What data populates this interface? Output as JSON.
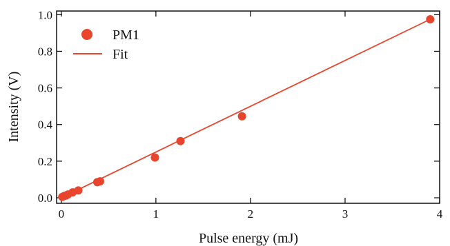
{
  "chart_data": {
    "type": "scatter",
    "title": "",
    "xlabel": "Pulse energy (mJ)",
    "ylabel": "Intensity (V)",
    "xlim": [
      -0.05,
      4.0
    ],
    "ylim": [
      -0.03,
      1.02
    ],
    "xticks": [
      0,
      1,
      2,
      3,
      4
    ],
    "xtick_labels": [
      "0",
      "1",
      "2",
      "3",
      "4"
    ],
    "yticks": [
      0.0,
      0.2,
      0.4,
      0.6,
      0.8,
      1.0
    ],
    "ytick_labels": [
      "0.0",
      "0.2",
      "0.4",
      "0.6",
      "0.8",
      "1.0"
    ],
    "series": [
      {
        "name": "PM1",
        "kind": "scatter",
        "color": "#e8452c",
        "x": [
          0.01,
          0.03,
          0.05,
          0.07,
          0.12,
          0.18,
          0.38,
          0.41,
          0.99,
          1.26,
          1.91,
          3.9
        ],
        "y": [
          0.005,
          0.01,
          0.012,
          0.018,
          0.03,
          0.04,
          0.085,
          0.09,
          0.22,
          0.31,
          0.445,
          0.975
        ]
      },
      {
        "name": "Fit",
        "kind": "line",
        "color": "#e8452c",
        "x": [
          0.0,
          3.9
        ],
        "y": [
          0.0,
          0.975
        ]
      }
    ],
    "legend": {
      "placement": "top-left",
      "entries": [
        "PM1",
        "Fit"
      ]
    },
    "grid": false
  }
}
